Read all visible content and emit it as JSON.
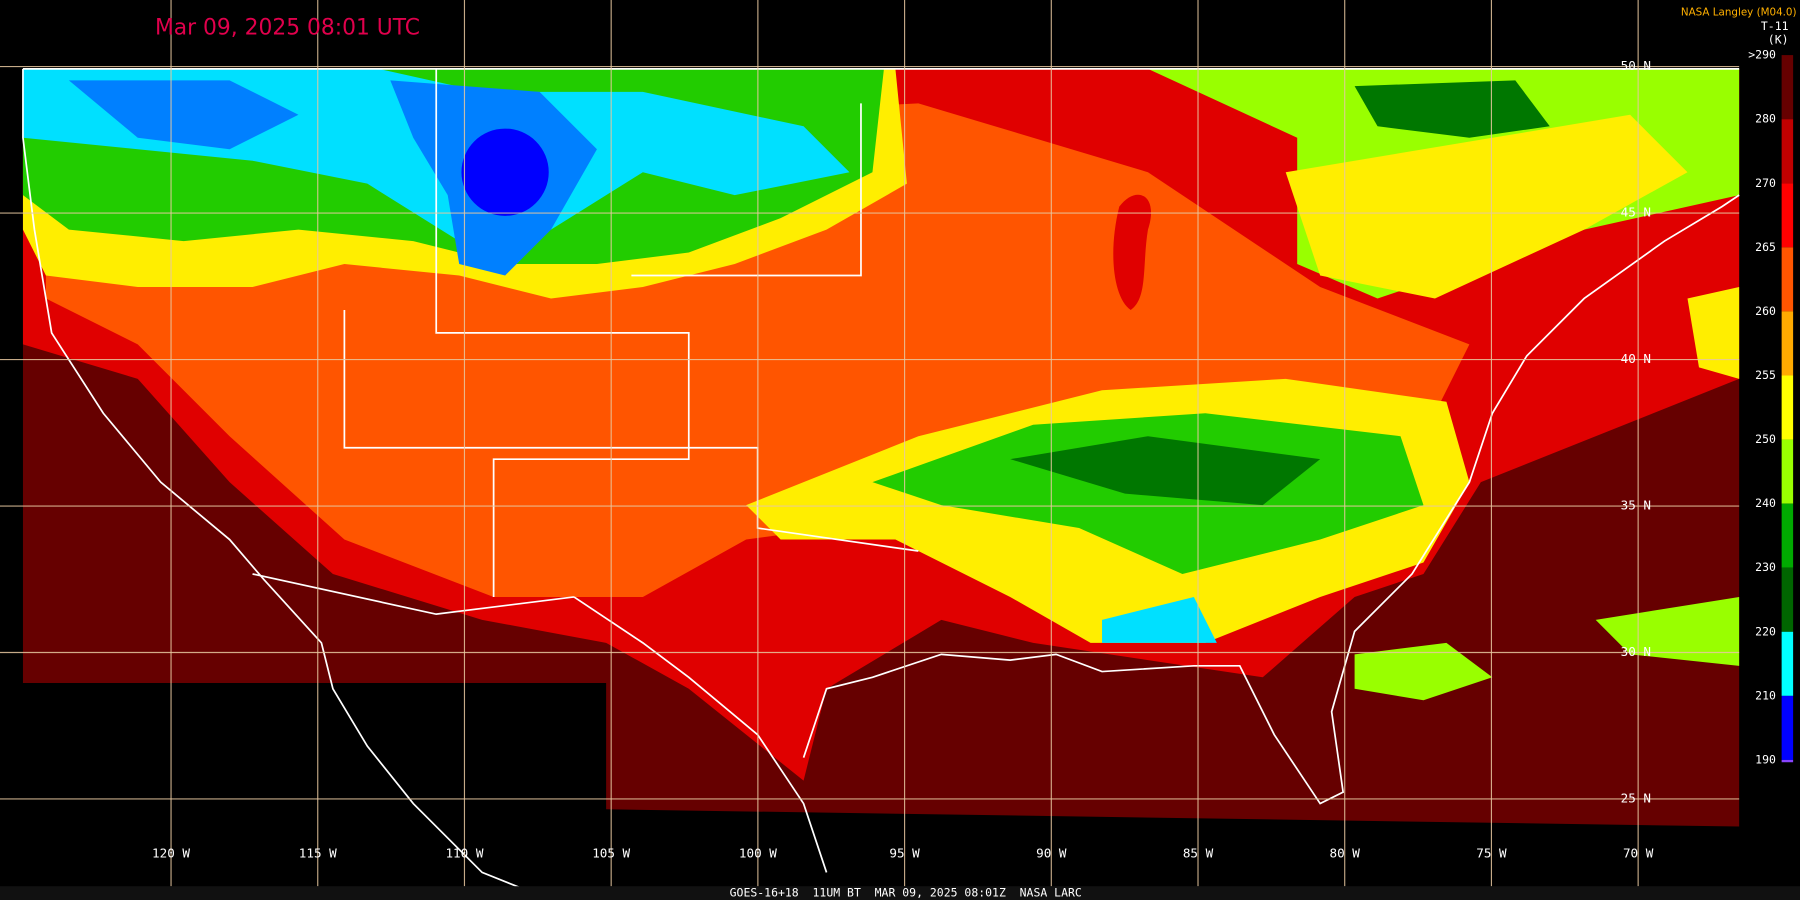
{
  "timestamp": "Mar 09, 2025 08:01 UTC",
  "credit": "NASA Langley (M04.0)",
  "colorbar": {
    "channel": "T-11",
    "unit": "(K)",
    "labels": [
      ">290",
      "280",
      "270",
      "265",
      "260",
      "255",
      "250",
      "240",
      "230",
      "220",
      "210",
      "190"
    ]
  },
  "latitude_labels": [
    "50 N",
    "45 N",
    "40 N",
    "35 N",
    "30 N",
    "25 N"
  ],
  "longitude_labels": [
    "120 W",
    "115 W",
    "110 W",
    "105 W",
    "100 W",
    "95 W",
    "90 W",
    "85 W",
    "80 W",
    "75 W",
    "70 W"
  ],
  "footer": "GOES-16+18  11UM BT  MAR 09, 2025 08:01Z  NASA LARC"
}
